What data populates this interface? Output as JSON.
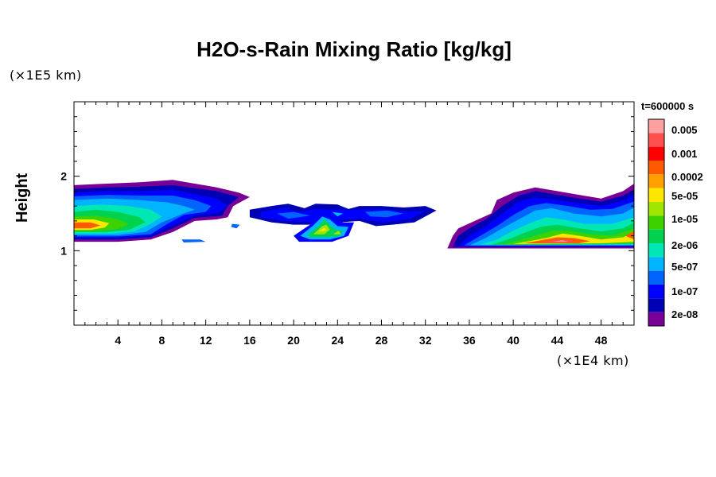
{
  "chart_data": {
    "type": "heatmap",
    "title": "H2O-s-Rain Mixing Ratio [kg/kg]",
    "ylabel": "Height",
    "x_scale_label": "(×1E4 km)",
    "y_scale_label": "(×1E5 km)",
    "time_label": "t=600000 s",
    "xlim": [
      0,
      51
    ],
    "ylim": [
      0,
      3
    ],
    "x_ticks": [
      "4",
      "8",
      "12",
      "16",
      "20",
      "24",
      "28",
      "32",
      "36",
      "40",
      "44",
      "48"
    ],
    "x_tick_values": [
      4,
      8,
      12,
      16,
      20,
      24,
      28,
      32,
      36,
      40,
      44,
      48
    ],
    "y_ticks": [
      "1",
      "2"
    ],
    "y_tick_values": [
      1,
      2
    ],
    "colorbar": {
      "labels": [
        "0.005",
        "0.001",
        "0.0002",
        "5e-05",
        "1e-05",
        "2e-06",
        "5e-07",
        "1e-07",
        "2e-08"
      ],
      "colors": [
        "#ffa0a0",
        "#ff5050",
        "#ff0000",
        "#ff5a00",
        "#ffa000",
        "#ffe600",
        "#a0e600",
        "#3cd200",
        "#00d250",
        "#00e6b4",
        "#00b4ff",
        "#0064ff",
        "#0000ff",
        "#0000b4",
        "#780096"
      ]
    },
    "cloud_regions": [
      {
        "x_range": [
          0,
          16
        ],
        "y_range": [
          1.1,
          1.9
        ],
        "peak_x": 1.5,
        "peak_y": 1.32
      },
      {
        "x_range": [
          19,
          25
        ],
        "y_range": [
          1.12,
          1.6
        ],
        "peak_x": 23,
        "peak_y": 1.35
      },
      {
        "x_range": [
          16,
          33
        ],
        "y_range": [
          1.3,
          1.65
        ],
        "peak_x": 27,
        "peak_y": 1.45
      },
      {
        "x_range": [
          34,
          51
        ],
        "y_range": [
          1.03,
          1.85
        ],
        "peak_x": 44,
        "peak_y": 1.2
      }
    ]
  }
}
